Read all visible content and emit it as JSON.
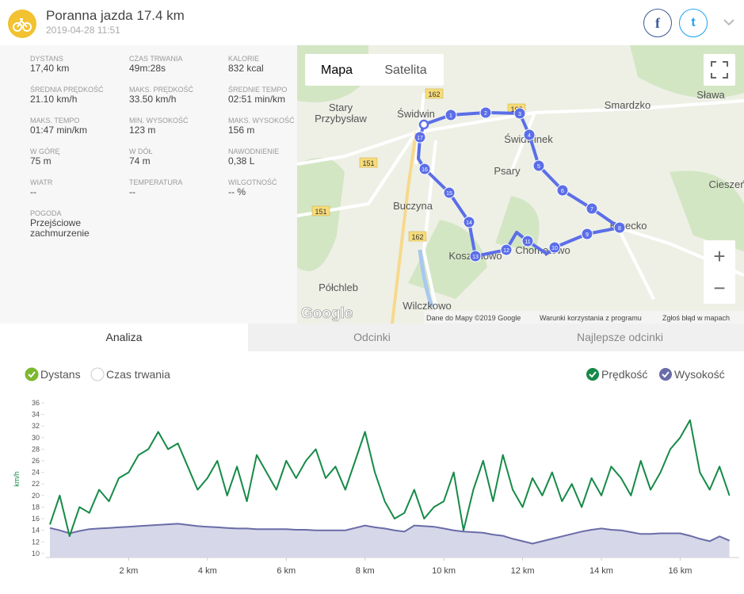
{
  "header": {
    "title": "Poranna jazda 17.4 km",
    "date": "2019-04-28 11:51",
    "share": [
      "f",
      "t"
    ]
  },
  "stats": [
    {
      "label": "DYSTANS",
      "value": "17,40 km"
    },
    {
      "label": "CZAS TRWANIA",
      "value": "49m:28s"
    },
    {
      "label": "KALORIE",
      "value": "832 kcal"
    },
    {
      "label": "ŚREDNIA PRĘDKOŚĆ",
      "value": "21.10 km/h"
    },
    {
      "label": "MAKS. PRĘDKOŚĆ",
      "value": "33.50 km/h"
    },
    {
      "label": "ŚREDNIE TEMPO",
      "value": "02:51 min/km"
    },
    {
      "label": "MAKS. TEMPO",
      "value": "01:47 min/km"
    },
    {
      "label": "MIN. WYSOKOŚĆ",
      "value": "123 m"
    },
    {
      "label": "MAKS. WYSOKOŚĆ",
      "value": "156 m"
    },
    {
      "label": "W GÓRĘ",
      "value": "75 m"
    },
    {
      "label": "W DÓŁ",
      "value": "74 m"
    },
    {
      "label": "NAWODNIENIE",
      "value": "0,38 L"
    },
    {
      "label": "WIATR",
      "value": "--"
    },
    {
      "label": "TEMPERATURA",
      "value": "--"
    },
    {
      "label": "WILGOTNOŚĆ",
      "value": "-- %"
    },
    {
      "label": "POGODA",
      "value": "Przejściowe zachmurzenie"
    }
  ],
  "map": {
    "buttons": [
      "Mapa",
      "Satelita"
    ],
    "zoom": [
      "+",
      "−"
    ],
    "places": [
      "Świdwin",
      "Stary Przybysław",
      "Świdwinek",
      "Smardzko",
      "Sława",
      "Psary",
      "Cieszeń",
      "Buczyna",
      "Krzecko",
      "Koszanowo",
      "Chomętowo",
      "Półchleb",
      "Wilczkowo"
    ],
    "roads": [
      "162",
      "151",
      "151",
      "162",
      "162"
    ],
    "markers": [
      1,
      2,
      3,
      4,
      5,
      6,
      7,
      8,
      9,
      10,
      11,
      12,
      13,
      14,
      15,
      16,
      17
    ],
    "logo": "Google",
    "footer": [
      "Dane do Mapy ©2019 Google",
      "Warunki korzystania z programu",
      "Zgłoś błąd w mapach"
    ]
  },
  "tabs": [
    "Analiza",
    "Odcinki",
    "Najlepsze odcinki"
  ],
  "toggles": [
    "Dystans",
    "Czas trwania"
  ],
  "chart_data": {
    "type": "line",
    "y_label": "km/h",
    "x": [
      0,
      0.25,
      0.5,
      0.75,
      1,
      1.25,
      1.5,
      1.75,
      2,
      2.25,
      2.5,
      2.75,
      3,
      3.25,
      3.5,
      3.75,
      4,
      4.25,
      4.5,
      4.75,
      5,
      5.25,
      5.5,
      5.75,
      6,
      6.25,
      6.5,
      6.75,
      7,
      7.25,
      7.5,
      7.75,
      8,
      8.25,
      8.5,
      8.75,
      9,
      9.25,
      9.5,
      9.75,
      10,
      10.25,
      10.5,
      10.75,
      11,
      11.25,
      11.5,
      11.75,
      12,
      12.25,
      12.5,
      12.75,
      13,
      13.25,
      13.5,
      13.75,
      14,
      14.25,
      14.5,
      14.75,
      15,
      15.25,
      15.5,
      15.75,
      16,
      16.25,
      16.5,
      16.75,
      17,
      17.25
    ],
    "series": [
      {
        "name": "Prędkość",
        "color": "#168a47",
        "values": [
          15,
          20,
          13,
          18,
          17,
          21,
          19,
          23,
          24,
          27,
          28,
          31,
          28,
          29,
          25,
          21,
          23,
          26,
          20,
          25,
          19,
          27,
          24,
          21,
          26,
          23,
          26,
          28,
          23,
          25,
          21,
          26,
          31,
          24,
          19,
          16,
          17,
          21,
          16,
          18,
          19,
          24,
          14,
          21,
          26,
          19,
          27,
          21,
          18,
          23,
          20,
          24,
          19,
          22,
          18,
          23,
          20,
          25,
          23,
          20,
          26,
          21,
          24,
          28,
          30,
          33,
          24,
          21,
          25,
          20
        ]
      },
      {
        "name": "Wysokość",
        "color": "#6a6ca8",
        "axis": "y2",
        "values": [
          149,
          145,
          140,
          144,
          147,
          148,
          149,
          150,
          151,
          152,
          153,
          154,
          155,
          156,
          154,
          152,
          151,
          150,
          149,
          148,
          148,
          147,
          147,
          147,
          147,
          146,
          146,
          145,
          145,
          145,
          145,
          149,
          153,
          150,
          148,
          145,
          143,
          153,
          152,
          151,
          148,
          145,
          143,
          142,
          141,
          138,
          136,
          131,
          127,
          123,
          127,
          131,
          135,
          139,
          143,
          146,
          148,
          146,
          145,
          142,
          139,
          139,
          140,
          140,
          140,
          136,
          131,
          127,
          135,
          128
        ]
      }
    ],
    "xlim": [
      -0.1,
      17.5
    ],
    "xticks": [
      {
        "value": 2,
        "label": "2 km"
      },
      {
        "value": 4,
        "label": "4 km"
      },
      {
        "value": 6,
        "label": "6 km"
      },
      {
        "value": 8,
        "label": "8 km"
      },
      {
        "value": 10,
        "label": "10 km"
      },
      {
        "value": 12,
        "label": "12 km"
      },
      {
        "value": 14,
        "label": "14 km"
      },
      {
        "value": 16,
        "label": "16 km"
      }
    ],
    "ylim": [
      9.3,
      36.4
    ],
    "yticks": [
      10,
      12,
      14,
      16,
      18,
      20,
      22,
      24,
      26,
      28,
      30,
      32,
      34,
      36
    ],
    "y2lim": [
      100,
      360
    ]
  }
}
